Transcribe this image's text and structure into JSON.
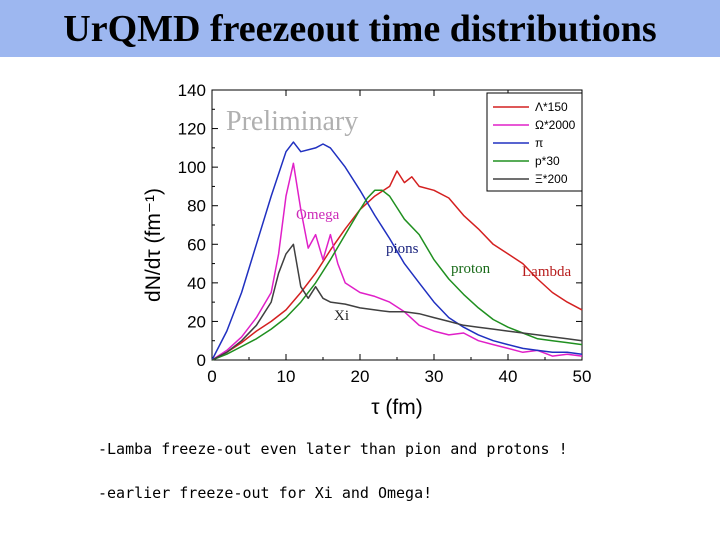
{
  "slide": {
    "title": "UrQMD freezeout time distributions",
    "bullets": [
      "-Lamba freeze-out even later than pion and protons !",
      "-earlier freeze-out for Xi and Omega!"
    ]
  },
  "chart_data": {
    "type": "line",
    "title": "",
    "watermark": "Preliminary",
    "xlabel": "τ (fm)",
    "ylabel": "dN/dτ (fm⁻¹)",
    "xlim": [
      0,
      50
    ],
    "ylim": [
      0,
      140
    ],
    "xticks": [
      0,
      10,
      20,
      30,
      40,
      50
    ],
    "yticks": [
      0,
      20,
      40,
      60,
      80,
      100,
      120,
      140
    ],
    "legend_position": "top-right",
    "series": [
      {
        "name": "Λ*150",
        "color": "#d42020",
        "x": [
          0,
          2,
          4,
          6,
          8,
          10,
          12,
          14,
          16,
          18,
          20,
          22,
          24,
          25,
          26,
          27,
          28,
          30,
          32,
          34,
          36,
          38,
          40,
          42,
          44,
          46,
          48,
          50
        ],
        "y": [
          0,
          4,
          9,
          15,
          20,
          26,
          35,
          45,
          57,
          68,
          78,
          85,
          90,
          98,
          92,
          95,
          90,
          88,
          84,
          75,
          68,
          60,
          55,
          50,
          42,
          35,
          30,
          26
        ]
      },
      {
        "name": "Ω*2000",
        "color": "#e020c8",
        "x": [
          0,
          2,
          4,
          6,
          8,
          9,
          10,
          11,
          12,
          13,
          14,
          15,
          16,
          17,
          18,
          20,
          22,
          24,
          26,
          28,
          30,
          32,
          34,
          36,
          38,
          40,
          42,
          44,
          46,
          48,
          50
        ],
        "y": [
          0,
          5,
          12,
          22,
          35,
          55,
          85,
          102,
          78,
          58,
          65,
          52,
          65,
          50,
          40,
          35,
          33,
          30,
          25,
          18,
          15,
          13,
          14,
          10,
          8,
          6,
          4,
          5,
          2,
          3,
          2
        ]
      },
      {
        "name": "π",
        "color": "#2030c0",
        "x": [
          0,
          2,
          4,
          6,
          8,
          10,
          11,
          12,
          14,
          15,
          16,
          18,
          20,
          22,
          24,
          26,
          28,
          30,
          32,
          34,
          36,
          38,
          40,
          42,
          44,
          46,
          48,
          50
        ],
        "y": [
          0,
          15,
          35,
          60,
          85,
          108,
          113,
          108,
          110,
          112,
          110,
          100,
          88,
          75,
          63,
          50,
          40,
          30,
          22,
          17,
          13,
          10,
          8,
          6,
          5,
          4,
          4,
          3
        ]
      },
      {
        "name": "p*30",
        "color": "#209020",
        "x": [
          0,
          2,
          4,
          6,
          8,
          10,
          12,
          14,
          16,
          18,
          20,
          21,
          22,
          23,
          24,
          25,
          26,
          28,
          30,
          32,
          34,
          36,
          38,
          40,
          42,
          44,
          46,
          48,
          50
        ],
        "y": [
          0,
          3,
          7,
          11,
          16,
          22,
          30,
          40,
          52,
          65,
          78,
          84,
          88,
          88,
          85,
          79,
          73,
          65,
          52,
          42,
          34,
          27,
          21,
          17,
          14,
          11,
          10,
          9,
          8
        ]
      },
      {
        "name": "Ξ*200",
        "color": "#404040",
        "x": [
          0,
          2,
          4,
          6,
          8,
          9,
          10,
          11,
          12,
          13,
          14,
          15,
          16,
          18,
          20,
          22,
          24,
          26,
          28,
          30,
          32,
          34,
          36,
          38,
          40,
          42,
          44,
          46,
          48,
          50
        ],
        "y": [
          0,
          4,
          10,
          18,
          30,
          45,
          55,
          60,
          38,
          32,
          38,
          32,
          30,
          29,
          27,
          26,
          25,
          25,
          24,
          22,
          20,
          18,
          17,
          16,
          15,
          14,
          13,
          12,
          11,
          10
        ]
      }
    ],
    "annotations": [
      {
        "text": "Omega",
        "color": "#cc2bb8"
      },
      {
        "text": "pions",
        "color": "#1a237e"
      },
      {
        "text": "proton",
        "color": "#1a6b1a"
      },
      {
        "text": "Lambda",
        "color": "#b71c1c"
      },
      {
        "text": "Xi",
        "color": "#222222"
      }
    ]
  }
}
